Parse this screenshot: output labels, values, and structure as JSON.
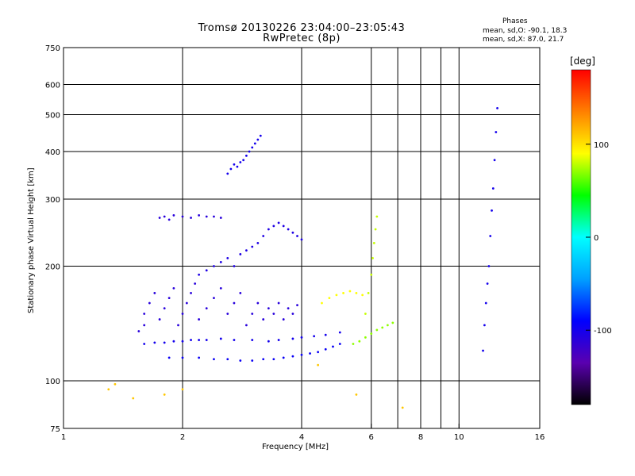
{
  "header": {
    "title_line1": "Tromsø 20130226 23:04:00–23:05:43",
    "title_line2": "RwPretec (8p)",
    "phases_heading": "Phases",
    "phases_o": "mean, sd,O: -90.1, 18.3",
    "phases_x": "mean, sd,X: 87.0, 21.7"
  },
  "chart_data": {
    "type": "scatter",
    "title": "Tromsø 20130226 23:04:00–23:05:43",
    "subtitle": "RwPretec (8p)",
    "xlabel": "Frequency [MHz]",
    "ylabel": "Stationary phase Virtual Height [km]",
    "x_scale": "log",
    "y_scale": "log",
    "xlim": [
      1,
      16
    ],
    "ylim": [
      75,
      750
    ],
    "x_ticks": [
      1,
      2,
      4,
      6,
      8,
      10,
      16
    ],
    "y_ticks": [
      75,
      100,
      200,
      300,
      400,
      500,
      600,
      750
    ],
    "grid_x": [
      2,
      4,
      6,
      7,
      8,
      9,
      10
    ],
    "grid_y": [
      100,
      200,
      300,
      400,
      500,
      600
    ],
    "colorbar": {
      "label": "[deg]",
      "range": [
        -180,
        180
      ],
      "ticks": [
        -100,
        0,
        100
      ],
      "colors": [
        "#000000",
        "#5a00b0",
        "#0000ff",
        "#00a0ff",
        "#00ffff",
        "#00ff00",
        "#ffff00",
        "#ff8000",
        "#ff0000"
      ]
    },
    "series": [
      {
        "points": [
          [
            1.85,
            115
          ],
          [
            2.0,
            115
          ],
          [
            2.2,
            115
          ],
          [
            2.4,
            114
          ],
          [
            2.6,
            114
          ],
          [
            2.8,
            113
          ],
          [
            3.0,
            113
          ],
          [
            3.2,
            114
          ],
          [
            3.4,
            114
          ],
          [
            3.6,
            115
          ],
          [
            3.8,
            116
          ],
          [
            4.0,
            117
          ],
          [
            4.2,
            118
          ],
          [
            4.4,
            119
          ],
          [
            4.6,
            121
          ],
          [
            4.8,
            123
          ],
          [
            5.0,
            125
          ]
        ],
        "phase": -95
      },
      {
        "points": [
          [
            1.6,
            125
          ],
          [
            1.7,
            126
          ],
          [
            1.8,
            126
          ],
          [
            1.9,
            127
          ],
          [
            2.0,
            127
          ],
          [
            2.1,
            128
          ],
          [
            2.2,
            128
          ],
          [
            2.3,
            128
          ],
          [
            2.5,
            129
          ],
          [
            2.7,
            128
          ],
          [
            3.0,
            128
          ],
          [
            3.3,
            127
          ],
          [
            3.5,
            128
          ],
          [
            3.8,
            129
          ],
          [
            4.0,
            130
          ],
          [
            4.3,
            131
          ],
          [
            4.6,
            132
          ],
          [
            5.0,
            134
          ]
        ],
        "phase": -100
      },
      {
        "points": [
          [
            1.55,
            135
          ],
          [
            1.6,
            140
          ],
          [
            1.6,
            150
          ],
          [
            1.65,
            160
          ],
          [
            1.7,
            170
          ],
          [
            1.75,
            145
          ],
          [
            1.8,
            155
          ],
          [
            1.85,
            165
          ],
          [
            1.9,
            175
          ],
          [
            1.95,
            140
          ],
          [
            2.0,
            150
          ],
          [
            2.05,
            160
          ],
          [
            2.1,
            170
          ],
          [
            2.15,
            180
          ],
          [
            2.2,
            145
          ],
          [
            2.3,
            155
          ],
          [
            2.4,
            165
          ],
          [
            2.5,
            175
          ],
          [
            2.6,
            150
          ],
          [
            2.7,
            160
          ],
          [
            2.8,
            170
          ],
          [
            2.9,
            140
          ],
          [
            3.0,
            150
          ],
          [
            3.1,
            160
          ],
          [
            3.2,
            145
          ],
          [
            3.3,
            155
          ],
          [
            3.4,
            150
          ],
          [
            3.5,
            160
          ],
          [
            3.6,
            145
          ],
          [
            3.7,
            155
          ],
          [
            3.8,
            150
          ],
          [
            3.9,
            158
          ]
        ],
        "phase": -110
      },
      {
        "points": [
          [
            2.2,
            190
          ],
          [
            2.3,
            195
          ],
          [
            2.4,
            200
          ],
          [
            2.5,
            205
          ],
          [
            2.6,
            210
          ],
          [
            2.7,
            200
          ],
          [
            2.8,
            215
          ],
          [
            2.9,
            220
          ],
          [
            3.0,
            225
          ],
          [
            3.1,
            230
          ],
          [
            3.2,
            240
          ],
          [
            3.3,
            250
          ],
          [
            3.4,
            255
          ],
          [
            3.5,
            260
          ],
          [
            3.6,
            255
          ],
          [
            3.7,
            250
          ],
          [
            3.8,
            245
          ],
          [
            3.9,
            240
          ],
          [
            4.0,
            235
          ]
        ],
        "phase": -105
      },
      {
        "points": [
          [
            1.75,
            268
          ],
          [
            1.8,
            270
          ],
          [
            1.85,
            265
          ],
          [
            1.9,
            272
          ],
          [
            2.0,
            270
          ],
          [
            2.1,
            268
          ],
          [
            2.2,
            272
          ],
          [
            2.3,
            270
          ],
          [
            2.4,
            270
          ],
          [
            2.5,
            268
          ]
        ],
        "phase": -110
      },
      {
        "points": [
          [
            2.6,
            350
          ],
          [
            2.65,
            360
          ],
          [
            2.7,
            370
          ],
          [
            2.75,
            365
          ],
          [
            2.8,
            375
          ],
          [
            2.85,
            380
          ],
          [
            2.9,
            390
          ],
          [
            2.95,
            400
          ],
          [
            3.0,
            410
          ],
          [
            3.05,
            420
          ],
          [
            3.1,
            430
          ],
          [
            3.15,
            440
          ]
        ],
        "phase": -100
      },
      {
        "points": [
          [
            4.5,
            160
          ],
          [
            4.7,
            165
          ],
          [
            4.9,
            168
          ],
          [
            5.1,
            170
          ],
          [
            5.3,
            172
          ],
          [
            5.5,
            170
          ],
          [
            5.7,
            168
          ]
        ],
        "phase": 90
      },
      {
        "points": [
          [
            5.4,
            125
          ],
          [
            5.6,
            127
          ],
          [
            5.8,
            130
          ],
          [
            6.0,
            133
          ],
          [
            6.2,
            136
          ],
          [
            6.4,
            138
          ],
          [
            6.6,
            140
          ],
          [
            6.8,
            142
          ]
        ],
        "phase": 70
      },
      {
        "points": [
          [
            5.8,
            150
          ],
          [
            5.9,
            170
          ],
          [
            6.0,
            190
          ],
          [
            6.05,
            210
          ],
          [
            6.1,
            230
          ],
          [
            6.15,
            250
          ],
          [
            6.2,
            270
          ]
        ],
        "phase": 80
      },
      {
        "points": [
          [
            11.5,
            120
          ],
          [
            11.6,
            140
          ],
          [
            11.7,
            160
          ],
          [
            11.8,
            180
          ],
          [
            11.9,
            200
          ],
          [
            12.0,
            240
          ],
          [
            12.1,
            280
          ],
          [
            12.2,
            320
          ],
          [
            12.3,
            380
          ],
          [
            12.4,
            450
          ],
          [
            12.5,
            520
          ]
        ],
        "phase": -100
      },
      {
        "points": [
          [
            1.3,
            95
          ],
          [
            1.35,
            98
          ],
          [
            1.5,
            90
          ],
          [
            1.8,
            92
          ],
          [
            2.0,
            95
          ],
          [
            4.4,
            110
          ],
          [
            5.5,
            92
          ],
          [
            7.2,
            85
          ]
        ],
        "phase": 110
      }
    ]
  }
}
